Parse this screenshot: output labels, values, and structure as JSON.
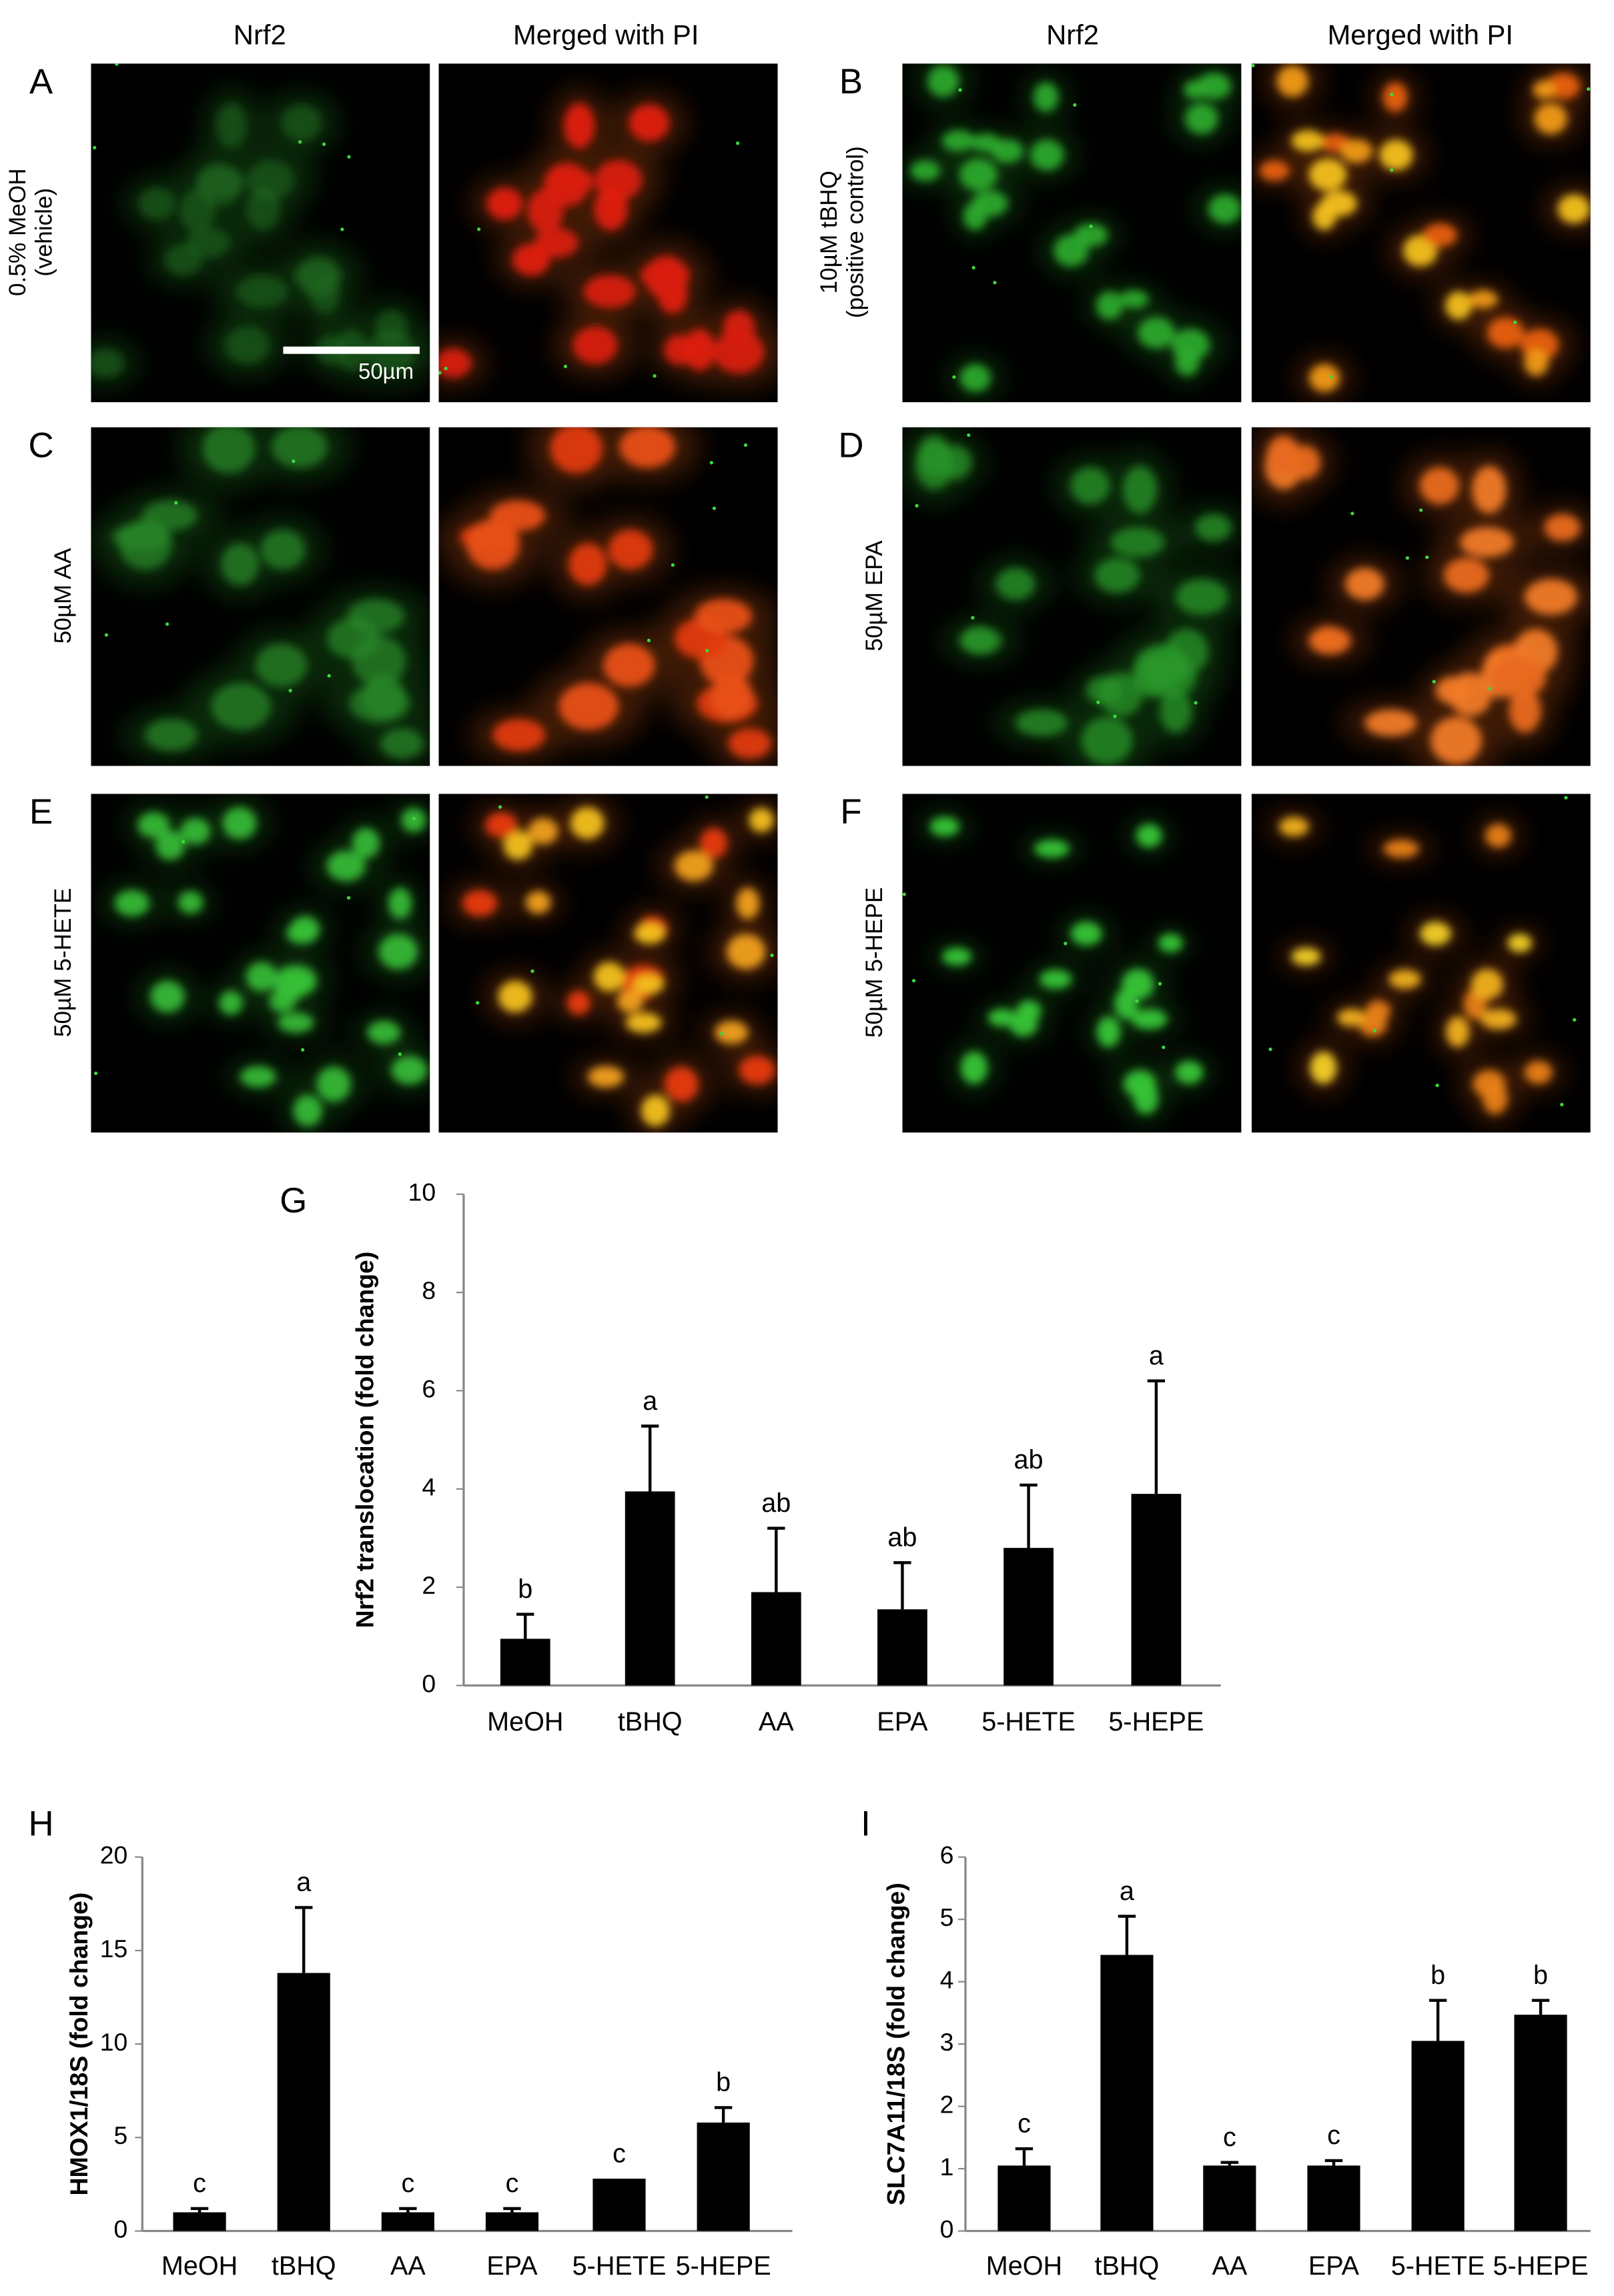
{
  "micrographs": {
    "column_headers": [
      "Nrf2",
      "Merged with PI",
      "Nrf2",
      "Merged with PI"
    ],
    "scale_bar": "50µm",
    "panels": [
      {
        "label": "A",
        "condition": [
          "0.5% MeOH",
          "(vehicle)"
        ]
      },
      {
        "label": "B",
        "condition": [
          "10µM tBHQ",
          "(positive control)"
        ]
      },
      {
        "label": "C",
        "condition": [
          "50µM AA"
        ]
      },
      {
        "label": "D",
        "condition": [
          "50µM EPA"
        ]
      },
      {
        "label": "E",
        "condition": [
          "50µM 5-HETE"
        ]
      },
      {
        "label": "F",
        "condition": [
          "50µM 5-HEPE"
        ]
      }
    ]
  },
  "chart_data": [
    {
      "type": "bar",
      "panel_label": "G",
      "y_label": "Nrf2 translocation (fold change)",
      "categories": [
        "MeOH",
        "tBHQ",
        "AA",
        "EPA",
        "5-HETE",
        "5-HEPE"
      ],
      "values": [
        0.95,
        3.95,
        1.9,
        1.55,
        2.8,
        3.9
      ],
      "errors": [
        0.5,
        1.33,
        1.3,
        0.95,
        1.28,
        2.3
      ],
      "significance": [
        "b",
        "a",
        "ab",
        "ab",
        "ab",
        "a"
      ],
      "color": "#000000",
      "ylim": [
        0,
        10
      ],
      "yticks": [
        0,
        2,
        4,
        6,
        8,
        10
      ]
    },
    {
      "type": "bar",
      "panel_label": "H",
      "y_label": "HMOX1/18S (fold change)",
      "categories": [
        "MeOH",
        "tBHQ",
        "AA",
        "EPA",
        "5-HETE",
        "5-HEPE"
      ],
      "values": [
        1.0,
        13.8,
        1.0,
        1.0,
        2.8,
        5.8
      ],
      "errors": [
        0.2,
        3.5,
        0.2,
        0.2,
        0,
        0.8
      ],
      "significance": [
        "c",
        "a",
        "c",
        "c",
        "c",
        "b"
      ],
      "color": "#000000",
      "ylim": [
        0,
        20
      ],
      "yticks": [
        0,
        5,
        10,
        15,
        20
      ]
    },
    {
      "type": "bar",
      "panel_label": "I",
      "y_label": "SLC7A11/18S (fold change)",
      "categories": [
        "MeOH",
        "tBHQ",
        "AA",
        "EPA",
        "5-HETE",
        "5-HEPE"
      ],
      "values": [
        1.05,
        4.43,
        1.05,
        1.05,
        3.05,
        3.47
      ],
      "errors": [
        0.27,
        0.62,
        0.05,
        0.08,
        0.65,
        0.23
      ],
      "significance": [
        "c",
        "a",
        "c",
        "c",
        "b",
        "b"
      ],
      "color": "#000000",
      "ylim": [
        0,
        6
      ],
      "yticks": [
        0,
        1,
        2,
        3,
        4,
        5,
        6
      ]
    }
  ]
}
